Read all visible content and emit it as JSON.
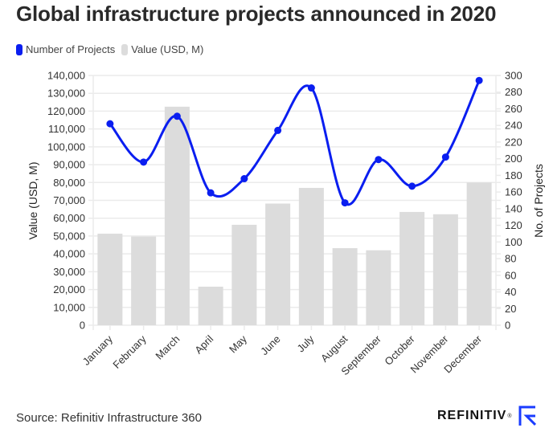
{
  "title": "Global infrastructure projects announced in 2020",
  "legend": [
    {
      "label": "Number of Projects",
      "color": "#0a1ef0"
    },
    {
      "label": "Value (USD, M)",
      "color": "#dcdcdc"
    }
  ],
  "source": "Source: Refinitiv Infrastructure 360",
  "brand": {
    "name": "REFINITIV",
    "mark": "®",
    "logo_icon": "refinitiv-logo-icon",
    "logo_color": "#1a3cff"
  },
  "chart_data": {
    "type": "bar",
    "title": "Global infrastructure projects announced in 2020",
    "categories": [
      "January",
      "February",
      "March",
      "April",
      "May",
      "June",
      "July",
      "August",
      "September",
      "October",
      "November",
      "December"
    ],
    "series": [
      {
        "name": "Value (USD, M)",
        "type": "bar",
        "axis": "left",
        "color": "#dcdcdc",
        "values": [
          51300,
          49700,
          122500,
          21600,
          56300,
          68200,
          77000,
          43200,
          42000,
          63500,
          62200,
          80000
        ]
      },
      {
        "name": "Number of Projects",
        "type": "line",
        "axis": "right",
        "smooth": true,
        "markers": true,
        "color": "#0a1ef0",
        "values": [
          242,
          196,
          251,
          159,
          176,
          234,
          285,
          147,
          199,
          167,
          202,
          294
        ]
      }
    ],
    "y_left": {
      "label": "Value (USD, M)",
      "lim": [
        0,
        140000
      ],
      "ticks": [
        0,
        10000,
        20000,
        30000,
        40000,
        50000,
        60000,
        70000,
        80000,
        90000,
        100000,
        110000,
        120000,
        130000,
        140000
      ],
      "tick_labels": [
        "0",
        "10,000",
        "20,000",
        "30,000",
        "40,000",
        "50,000",
        "60,000",
        "70,000",
        "80,000",
        "90,000",
        "100,000",
        "110,000",
        "120,000",
        "130,000",
        "140,000"
      ]
    },
    "y_right": {
      "label": "No. of Projects",
      "lim": [
        0,
        300
      ],
      "ticks": [
        0,
        20,
        40,
        60,
        80,
        100,
        120,
        140,
        160,
        180,
        200,
        220,
        240,
        260,
        280,
        300
      ],
      "tick_labels": [
        "0",
        "20",
        "40",
        "60",
        "80",
        "100",
        "120",
        "140",
        "160",
        "180",
        "200",
        "220",
        "240",
        "260",
        "280",
        "300"
      ]
    },
    "xlabel": "",
    "grid": true,
    "legend_position": "top-left",
    "gridline_color": "#ebebeb"
  }
}
